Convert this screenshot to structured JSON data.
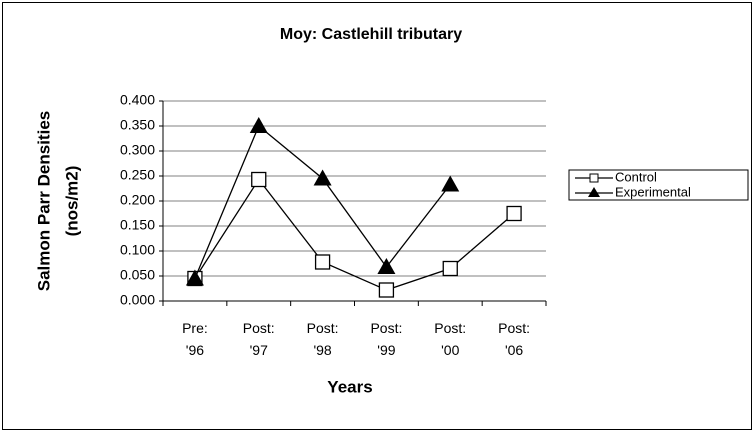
{
  "chart_data": {
    "type": "line",
    "title": "Moy: Castlehill tributary",
    "x_label": "Years",
    "y_label": [
      "Salmon Parr Densities",
      "(nos/m2)"
    ],
    "categories": [
      "Pre: '96",
      "Post: '97",
      "Post: '98",
      "Post: '99",
      "Post: '00",
      "Post: '06"
    ],
    "series": [
      {
        "name": "Control",
        "color": "#000000",
        "marker": "square",
        "values": [
          0.045,
          0.243,
          0.078,
          0.022,
          0.065,
          0.175
        ]
      },
      {
        "name": "Experimental",
        "color": "#000000",
        "marker": "triangle",
        "values": [
          0.045,
          0.35,
          0.245,
          0.068,
          0.233,
          null
        ]
      }
    ],
    "ylim": [
      0,
      0.4
    ],
    "yticks": [
      {
        "value": 0,
        "label": "0.000"
      },
      {
        "value": 0.05,
        "label": "0.050"
      },
      {
        "value": 0.1,
        "label": "0.100"
      },
      {
        "value": 0.15,
        "label": "0.150"
      },
      {
        "value": 0.2,
        "label": "0.200"
      },
      {
        "value": 0.25,
        "label": "0.250"
      },
      {
        "value": 0.3,
        "label": "0.300"
      },
      {
        "value": 0.35,
        "label": "0.350"
      },
      {
        "value": 0.4,
        "label": "0.400"
      }
    ],
    "grid": true,
    "legend": "right"
  }
}
